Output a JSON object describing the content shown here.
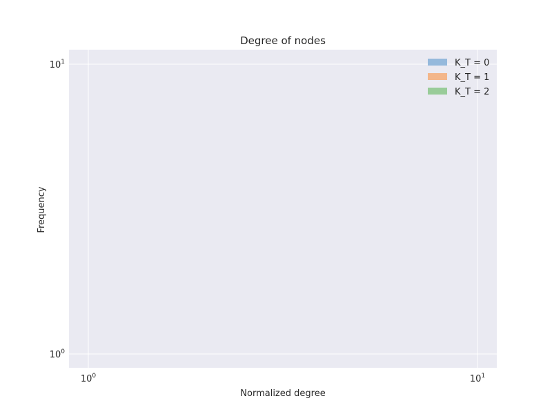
{
  "chart_data": {
    "type": "bar",
    "title": "Degree of nodes",
    "xlabel": "Normalized degree",
    "ylabel": "Frequency",
    "x_scale": "log",
    "y_scale": "log",
    "xlim": [
      1,
      10
    ],
    "ylim": [
      1,
      10
    ],
    "x_ticks": [
      {
        "value": 1,
        "base": "10",
        "exp": "0"
      },
      {
        "value": 10,
        "base": "10",
        "exp": "1"
      }
    ],
    "y_ticks": [
      {
        "value": 1,
        "base": "10",
        "exp": "0"
      },
      {
        "value": 10,
        "base": "10",
        "exp": "1"
      }
    ],
    "grid": true,
    "legend_position": "top-right",
    "series": [
      {
        "name": "K_T = 0",
        "color": "#95b9dc",
        "values": []
      },
      {
        "name": "K_T = 1",
        "color": "#f3b68a",
        "values": []
      },
      {
        "name": "K_T = 2",
        "color": "#99cc99",
        "values": []
      }
    ],
    "background": "#eaeaf2"
  }
}
